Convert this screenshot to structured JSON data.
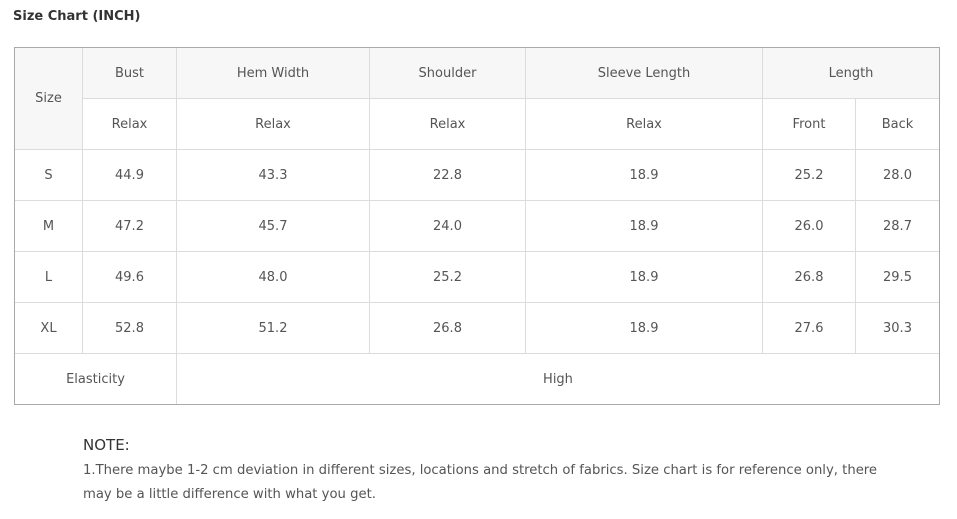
{
  "title": "Size Chart (INCH)",
  "table": {
    "size_label": "Size",
    "columns": {
      "bust": "Bust",
      "hem_width": "Hem Width",
      "shoulder": "Shoulder",
      "sleeve_length": "Sleeve Length",
      "length": "Length"
    },
    "subheaders": {
      "bust": "Relax",
      "hem_width": "Relax",
      "shoulder": "Relax",
      "sleeve_length": "Relax",
      "front": "Front",
      "back": "Back"
    },
    "rows": [
      {
        "size": "S",
        "bust": "44.9",
        "hem_width": "43.3",
        "shoulder": "22.8",
        "sleeve_length": "18.9",
        "front": "25.2",
        "back": "28.0"
      },
      {
        "size": "M",
        "bust": "47.2",
        "hem_width": "45.7",
        "shoulder": "24.0",
        "sleeve_length": "18.9",
        "front": "26.0",
        "back": "28.7"
      },
      {
        "size": "L",
        "bust": "49.6",
        "hem_width": "48.0",
        "shoulder": "25.2",
        "sleeve_length": "18.9",
        "front": "26.8",
        "back": "29.5"
      },
      {
        "size": "XL",
        "bust": "52.8",
        "hem_width": "51.2",
        "shoulder": "26.8",
        "sleeve_length": "18.9",
        "front": "27.6",
        "back": "30.3"
      }
    ],
    "elasticity_label": "Elasticity",
    "elasticity_value": "High"
  },
  "note": {
    "title": "NOTE:",
    "text": "1.There maybe 1-2 cm deviation in different sizes, locations and stretch of fabrics. Size chart is for reference only, there may be a little difference with what you get."
  }
}
